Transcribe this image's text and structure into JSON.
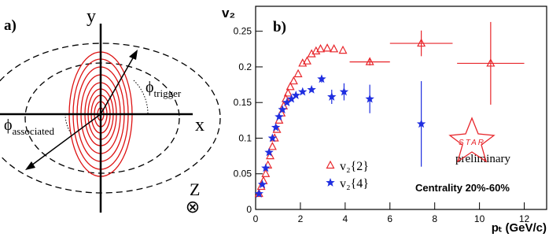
{
  "panel_a": {
    "label": "a)",
    "y_axis": "y",
    "x_axis": "x",
    "z_axis": "Z",
    "phi_trigger": {
      "symbol": "ϕ",
      "subscript": "trigger"
    },
    "phi_associated": {
      "symbol": "ϕ",
      "subscript": "associated"
    }
  },
  "chart_data": {
    "type": "scatter",
    "panel_label": "b)",
    "xlabel": "pₜ (GeV/c)",
    "ylabel": "v₂",
    "xlim": [
      0,
      13
    ],
    "ylim": [
      0,
      0.285
    ],
    "xticks": [
      0,
      2,
      4,
      6,
      8,
      10,
      12
    ],
    "yticks": [
      0,
      0.05,
      0.1,
      0.15,
      0.2,
      0.25
    ],
    "annotations": [
      "Centrality 20%-60%",
      "preliminary"
    ],
    "logo": "STAR",
    "series": [
      {
        "name": "v₂{2}",
        "color": "#e8262b",
        "marker": "triangle",
        "x": [
          0.15,
          0.25,
          0.35,
          0.45,
          0.55,
          0.65,
          0.75,
          0.85,
          0.95,
          1.05,
          1.15,
          1.25,
          1.35,
          1.45,
          1.55,
          1.7,
          1.9,
          2.1,
          2.3,
          2.5,
          2.7,
          2.9,
          3.2,
          3.5,
          3.9,
          5.1,
          7.4,
          10.5
        ],
        "values": [
          0.022,
          0.032,
          0.04,
          0.05,
          0.062,
          0.075,
          0.088,
          0.1,
          0.112,
          0.125,
          0.135,
          0.145,
          0.155,
          0.163,
          0.172,
          0.18,
          0.19,
          0.205,
          0.208,
          0.218,
          0.222,
          0.225,
          0.226,
          0.225,
          0.223,
          0.207,
          0.233,
          0.205
        ],
        "xerr": [
          null,
          null,
          null,
          null,
          null,
          null,
          null,
          null,
          null,
          null,
          null,
          null,
          null,
          null,
          null,
          null,
          null,
          null,
          null,
          null,
          null,
          null,
          null,
          null,
          null,
          0.9,
          1.4,
          1.5
        ],
        "yerr": [
          null,
          null,
          null,
          null,
          null,
          null,
          null,
          null,
          null,
          null,
          null,
          null,
          null,
          null,
          null,
          null,
          null,
          null,
          null,
          null,
          null,
          null,
          null,
          null,
          null,
          0.005,
          0.018,
          0.058
        ]
      },
      {
        "name": "v₂{4}",
        "color": "#1f2ee0",
        "marker": "star",
        "x": [
          0.15,
          0.3,
          0.45,
          0.6,
          0.75,
          0.9,
          1.05,
          1.2,
          1.4,
          1.6,
          1.8,
          2.1,
          2.5,
          2.95,
          3.4,
          3.95,
          5.1,
          7.4
        ],
        "values": [
          0.022,
          0.035,
          0.058,
          0.08,
          0.1,
          0.115,
          0.13,
          0.14,
          0.15,
          0.155,
          0.16,
          0.165,
          0.168,
          0.183,
          0.158,
          0.165,
          0.155,
          0.12
        ],
        "yerr": [
          null,
          null,
          null,
          null,
          null,
          null,
          null,
          null,
          null,
          null,
          null,
          null,
          null,
          0.005,
          0.01,
          0.012,
          0.02,
          0.06
        ]
      }
    ]
  }
}
